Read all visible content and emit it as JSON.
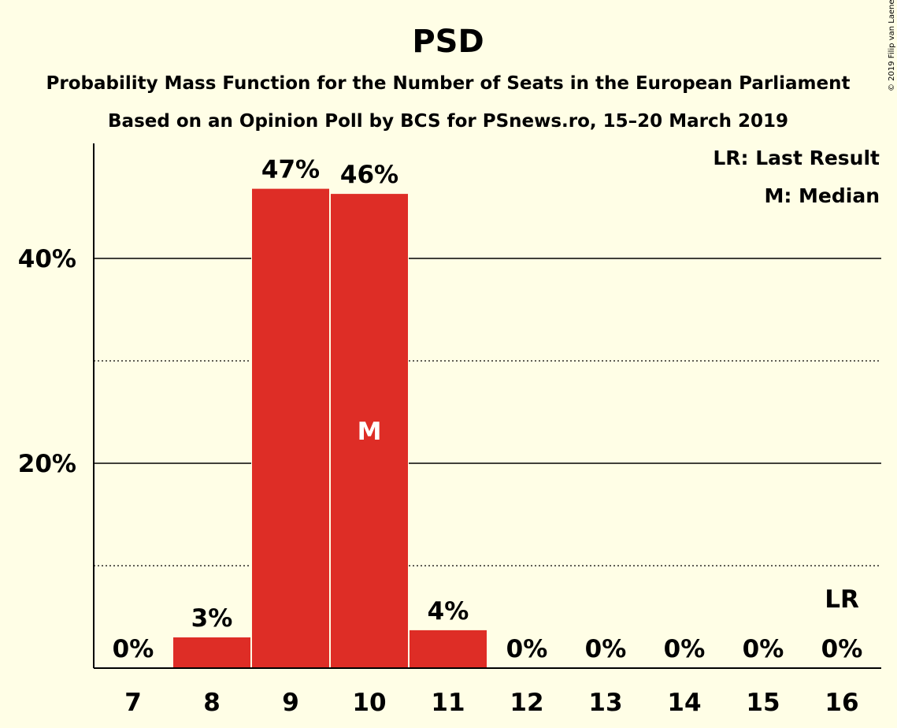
{
  "chart_data": {
    "type": "bar",
    "title": "PSD",
    "subtitle": "Probability Mass Function for the Number of Seats in the European Parliament",
    "subtitle2": "Based on an Opinion Poll by BCS for PSnews.ro, 15–20 March 2019",
    "copyright": "© 2019 Filip van Laenen",
    "legend": [
      "LR: Last Result",
      "M: Median"
    ],
    "legend_position": "top-right",
    "categories": [
      "7",
      "8",
      "9",
      "10",
      "11",
      "12",
      "13",
      "14",
      "15",
      "16"
    ],
    "values": [
      0,
      3.0,
      46.8,
      46.3,
      3.7,
      0,
      0,
      0,
      0,
      0
    ],
    "data_labels": [
      "0%",
      "3%",
      "47%",
      "46%",
      "4%",
      "0%",
      "0%",
      "0%",
      "0%",
      "0%"
    ],
    "median_category": "10",
    "median_marker": "M",
    "last_result_category": "16",
    "last_result_marker": "LR",
    "ylim": [
      0,
      51
    ],
    "yticks": [
      20,
      40
    ],
    "ytick_labels": [
      "20%",
      "40%"
    ],
    "minor_gridlines": [
      10,
      30
    ],
    "bar_color": "#DE2D26",
    "background_color": "#FFFEE6"
  }
}
